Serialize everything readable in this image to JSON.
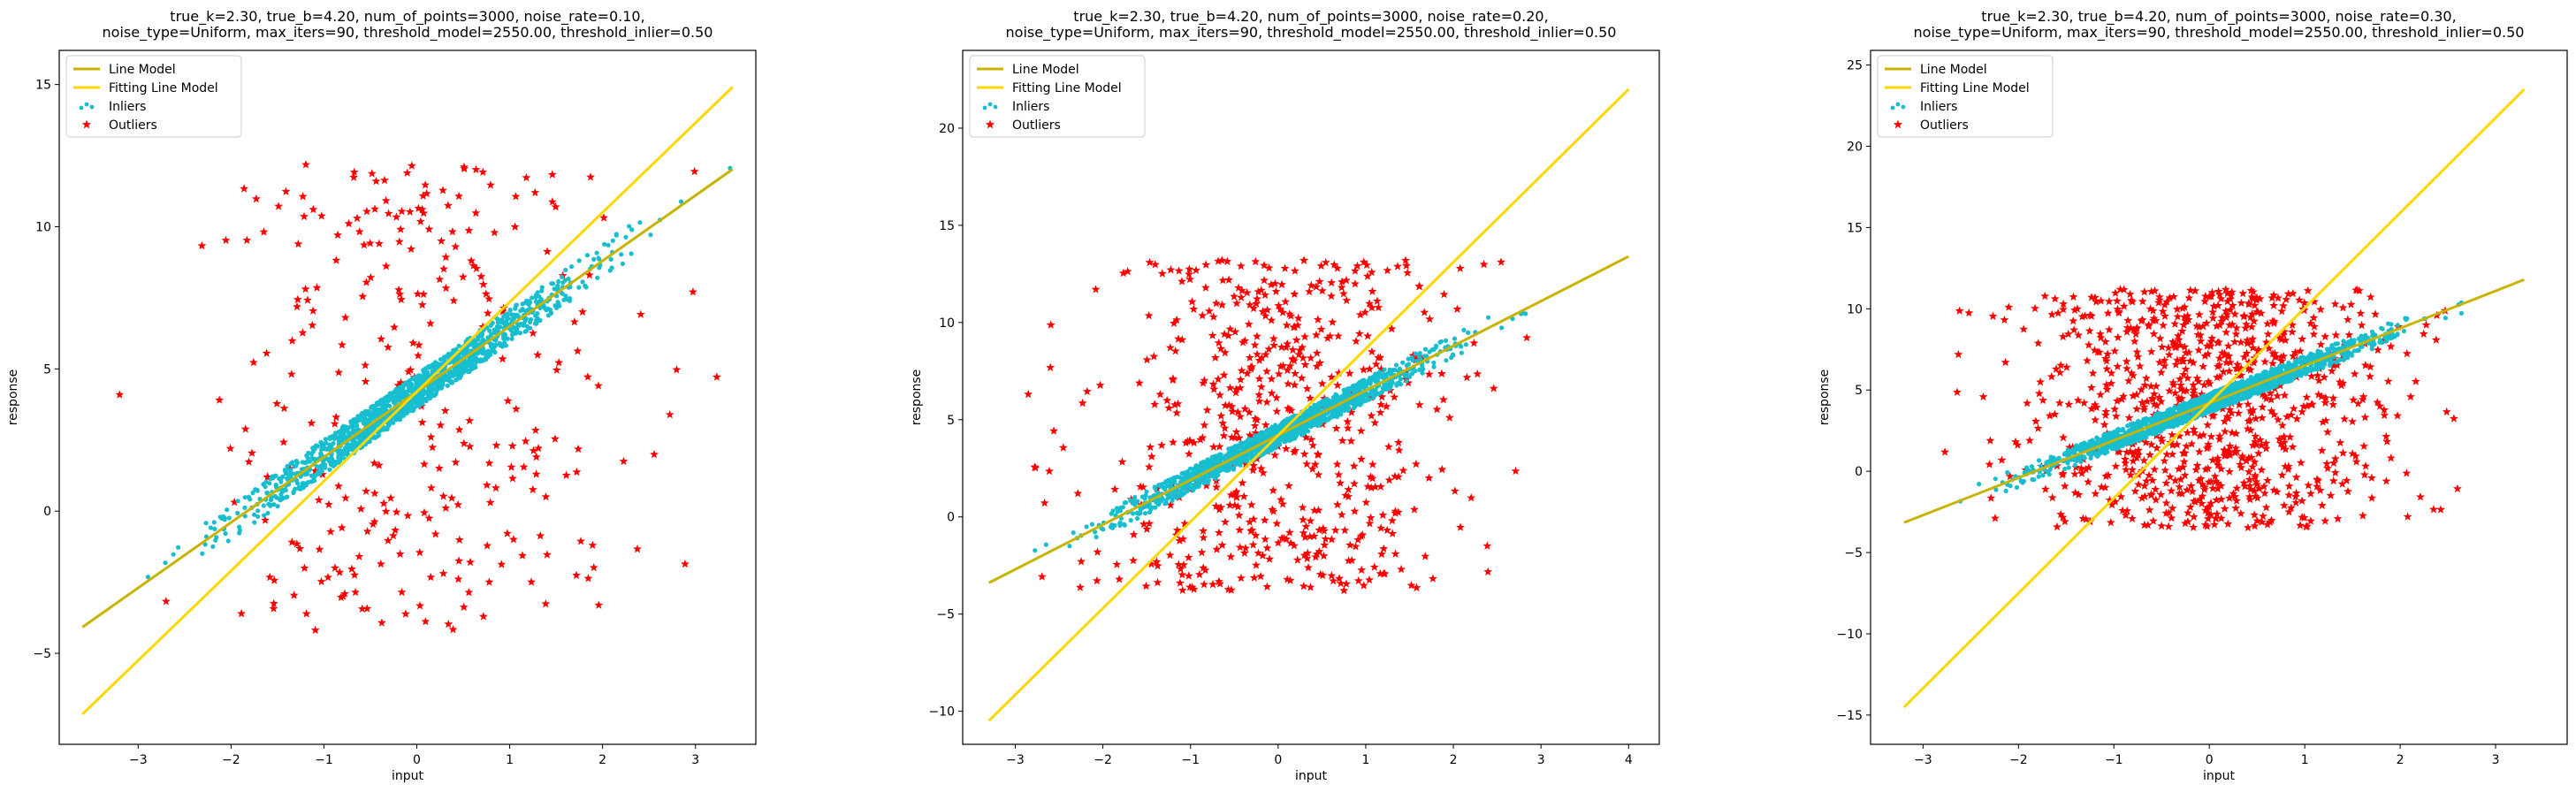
{
  "chart_data": [
    {
      "type": "scatter",
      "title_lines": [
        "true_k=2.30, true_b=4.20, num_of_points=3000, noise_rate=0.10,",
        "noise_type=Uniform, max_iters=90, threshold_model=2550.00, threshold_inlier=0.50"
      ],
      "xlabel": "input",
      "ylabel": "response",
      "xlim": [
        -3.85,
        3.65
      ],
      "ylim": [
        -8.2,
        16.2
      ],
      "xticks": [
        -3,
        -2,
        -1,
        0,
        1,
        2,
        3
      ],
      "yticks": [
        -5,
        0,
        5,
        10,
        15
      ],
      "legend_position": "upper left",
      "legend": [
        {
          "label": "Line Model",
          "kind": "line",
          "color": "#c8b400"
        },
        {
          "label": "Fitting Line Model",
          "kind": "line",
          "color": "#ffd700"
        },
        {
          "label": "Inliers",
          "kind": "dot",
          "color": "#17becf"
        },
        {
          "label": "Outliers",
          "kind": "star",
          "color": "#ff0000"
        }
      ],
      "line_model": {
        "k": 2.3,
        "b": 4.2,
        "x_range": [
          -3.6,
          3.4
        ]
      },
      "fitting_line_model": {
        "k": 3.15,
        "b": 4.2,
        "x_range": [
          -3.6,
          3.4
        ]
      },
      "inliers": {
        "n": 1400,
        "x_range": [
          -3.6,
          3.4
        ],
        "center_sigma": 0.9,
        "band": 0.6,
        "seed": 11
      },
      "outliers": {
        "n": 300,
        "x_range": [
          -3.2,
          3.4
        ],
        "center_sigma": 1.05,
        "y_range": [
          -4.2,
          12.2
        ],
        "seed": 12
      }
    },
    {
      "type": "scatter",
      "title_lines": [
        "true_k=2.30, true_b=4.20, num_of_points=3000, noise_rate=0.20,",
        "noise_type=Uniform, max_iters=90, threshold_model=2550.00, threshold_inlier=0.50"
      ],
      "xlabel": "input",
      "ylabel": "response",
      "xlim": [
        -3.6,
        4.35
      ],
      "ylim": [
        -11.7,
        24.0
      ],
      "xticks": [
        -3,
        -2,
        -1,
        0,
        1,
        2,
        3,
        4
      ],
      "yticks": [
        -10,
        -5,
        0,
        5,
        10,
        15,
        20
      ],
      "legend_position": "upper left",
      "legend": [
        {
          "label": "Line Model",
          "kind": "line",
          "color": "#c8b400"
        },
        {
          "label": "Fitting Line Model",
          "kind": "line",
          "color": "#ffd700"
        },
        {
          "label": "Inliers",
          "kind": "dot",
          "color": "#17becf"
        },
        {
          "label": "Outliers",
          "kind": "star",
          "color": "#ff0000"
        }
      ],
      "line_model": {
        "k": 2.3,
        "b": 4.2,
        "x_range": [
          -3.3,
          4.0
        ]
      },
      "fitting_line_model": {
        "k": 4.45,
        "b": 4.2,
        "x_range": [
          -3.3,
          4.0
        ]
      },
      "inliers": {
        "n": 1400,
        "x_range": [
          -3.3,
          4.0
        ],
        "center_sigma": 0.9,
        "band": 0.6,
        "seed": 21
      },
      "outliers": {
        "n": 600,
        "x_range": [
          -3.2,
          3.4
        ],
        "center_sigma": 0.95,
        "y_range": [
          -3.8,
          13.2
        ],
        "seed": 22
      }
    },
    {
      "type": "scatter",
      "title_lines": [
        "true_k=2.30, true_b=4.20, num_of_points=3000, noise_rate=0.30,",
        "noise_type=Uniform, max_iters=90, threshold_model=2550.00, threshold_inlier=0.50"
      ],
      "xlabel": "input",
      "ylabel": "response",
      "xlim": [
        -3.55,
        3.75
      ],
      "ylim": [
        -16.8,
        25.9
      ],
      "xticks": [
        -3,
        -2,
        -1,
        0,
        1,
        2,
        3
      ],
      "yticks": [
        -15,
        -10,
        -5,
        0,
        5,
        10,
        15,
        20,
        25
      ],
      "legend_position": "upper left",
      "legend": [
        {
          "label": "Line Model",
          "kind": "line",
          "color": "#c8b400"
        },
        {
          "label": "Fitting Line Model",
          "kind": "line",
          "color": "#ffd700"
        },
        {
          "label": "Inliers",
          "kind": "dot",
          "color": "#17becf"
        },
        {
          "label": "Outliers",
          "kind": "star",
          "color": "#ff0000"
        }
      ],
      "line_model": {
        "k": 2.3,
        "b": 4.2,
        "x_range": [
          -3.2,
          3.3
        ]
      },
      "fitting_line_model": {
        "k": 5.85,
        "b": 4.2,
        "x_range": [
          -3.2,
          3.3
        ]
      },
      "inliers": {
        "n": 1400,
        "x_range": [
          -3.2,
          2.65
        ],
        "center_sigma": 0.9,
        "band": 0.6,
        "seed": 31
      },
      "outliers": {
        "n": 900,
        "x_range": [
          -3.2,
          2.6
        ],
        "center_sigma": 0.95,
        "y_range": [
          -3.5,
          11.2
        ],
        "seed": 32
      }
    }
  ]
}
